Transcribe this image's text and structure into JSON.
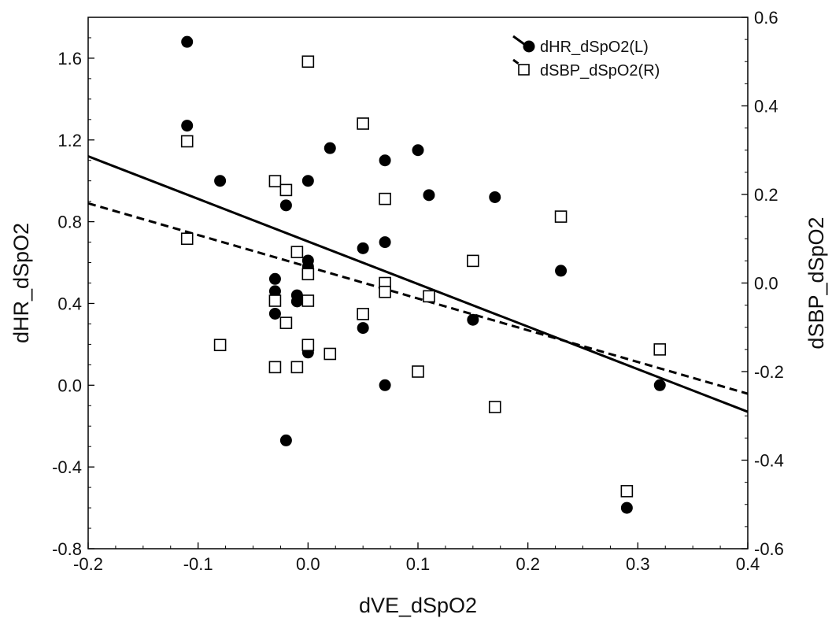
{
  "chart_data": {
    "type": "scatter",
    "xlabel": "dVE_dSpO2",
    "ylabel_left": "dHR_dSpO2",
    "ylabel_right": "dSBP_dSpO2",
    "xlim": [
      -0.2,
      0.4
    ],
    "ylim_left": [
      -0.8,
      1.8
    ],
    "ylim_right": [
      -0.6,
      0.6
    ],
    "x_ticks": [
      "-0.2",
      "-0.1",
      "0.0",
      "0.1",
      "0.2",
      "0.3",
      "0.4"
    ],
    "y_left_ticks": [
      "-0.8",
      "-0.4",
      "0.0",
      "0.4",
      "0.8",
      "1.2",
      "1.6"
    ],
    "y_right_ticks": [
      "-0.6",
      "-0.4",
      "-0.2",
      "0.0",
      "0.2",
      "0.4",
      "0.6"
    ],
    "grid": false,
    "legend_position": "top-right",
    "series": [
      {
        "name": "dHR_dSpO2(L)",
        "axis": "left",
        "marker": "filled-circle",
        "line_style": "solid",
        "color": "#000000",
        "fit_line": {
          "x": [
            -0.2,
            0.4
          ],
          "y": [
            1.12,
            -0.13
          ]
        },
        "points": [
          {
            "x": -0.11,
            "y": 1.68
          },
          {
            "x": -0.11,
            "y": 1.27
          },
          {
            "x": -0.08,
            "y": 1.0
          },
          {
            "x": -0.03,
            "y": 0.52
          },
          {
            "x": -0.03,
            "y": 0.46
          },
          {
            "x": -0.03,
            "y": 0.35
          },
          {
            "x": -0.02,
            "y": 0.88
          },
          {
            "x": -0.02,
            "y": -0.27
          },
          {
            "x": -0.01,
            "y": 0.44
          },
          {
            "x": -0.01,
            "y": 0.41
          },
          {
            "x": 0.0,
            "y": 1.0
          },
          {
            "x": 0.0,
            "y": 0.61
          },
          {
            "x": 0.0,
            "y": 0.58
          },
          {
            "x": 0.0,
            "y": 0.16
          },
          {
            "x": 0.02,
            "y": 1.16
          },
          {
            "x": 0.05,
            "y": 0.67
          },
          {
            "x": 0.05,
            "y": 0.28
          },
          {
            "x": 0.07,
            "y": 1.1
          },
          {
            "x": 0.07,
            "y": 0.7
          },
          {
            "x": 0.07,
            "y": 0.0
          },
          {
            "x": 0.1,
            "y": 1.15
          },
          {
            "x": 0.11,
            "y": 0.93
          },
          {
            "x": 0.15,
            "y": 0.32
          },
          {
            "x": 0.17,
            "y": 0.92
          },
          {
            "x": 0.23,
            "y": 0.56
          },
          {
            "x": 0.29,
            "y": -0.6
          },
          {
            "x": 0.32,
            "y": 0.0
          }
        ]
      },
      {
        "name": "dSBP_dSpO2(R)",
        "axis": "right",
        "marker": "open-square",
        "line_style": "dashed",
        "color": "#000000",
        "fit_line": {
          "x": [
            -0.2,
            0.4
          ],
          "y": [
            0.18,
            -0.25
          ]
        },
        "points": [
          {
            "x": -0.11,
            "y": 0.32
          },
          {
            "x": -0.11,
            "y": 0.1
          },
          {
            "x": -0.08,
            "y": -0.14
          },
          {
            "x": -0.03,
            "y": 0.23
          },
          {
            "x": -0.03,
            "y": -0.04
          },
          {
            "x": -0.03,
            "y": -0.19
          },
          {
            "x": -0.02,
            "y": 0.21
          },
          {
            "x": -0.02,
            "y": -0.09
          },
          {
            "x": -0.01,
            "y": 0.07
          },
          {
            "x": -0.01,
            "y": -0.19
          },
          {
            "x": 0.0,
            "y": 0.5
          },
          {
            "x": 0.0,
            "y": 0.02
          },
          {
            "x": 0.0,
            "y": -0.04
          },
          {
            "x": 0.0,
            "y": -0.14
          },
          {
            "x": 0.02,
            "y": -0.16
          },
          {
            "x": 0.05,
            "y": 0.36
          },
          {
            "x": 0.05,
            "y": -0.07
          },
          {
            "x": 0.07,
            "y": 0.19
          },
          {
            "x": 0.07,
            "y": 0.0
          },
          {
            "x": 0.07,
            "y": -0.02
          },
          {
            "x": 0.1,
            "y": -0.2
          },
          {
            "x": 0.11,
            "y": -0.03
          },
          {
            "x": 0.15,
            "y": 0.05
          },
          {
            "x": 0.17,
            "y": -0.28
          },
          {
            "x": 0.23,
            "y": 0.15
          },
          {
            "x": 0.29,
            "y": -0.47
          },
          {
            "x": 0.32,
            "y": -0.15
          }
        ]
      }
    ]
  }
}
